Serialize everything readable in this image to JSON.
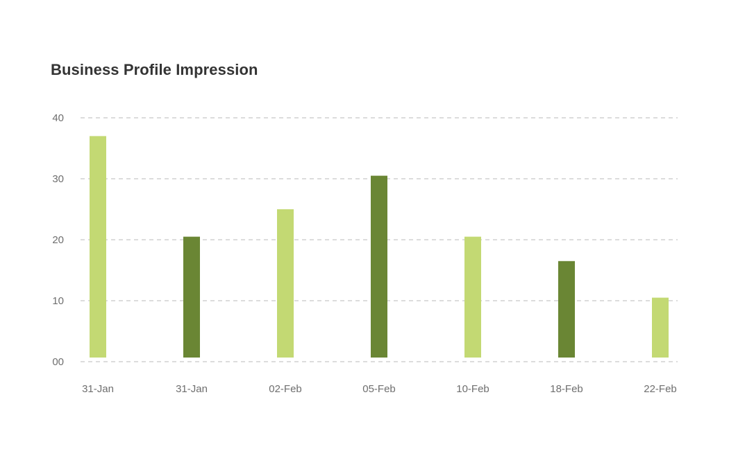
{
  "chart_data": {
    "type": "bar",
    "title": "Business Profile Impression",
    "xlabel": "",
    "ylabel": "",
    "categories": [
      "31-Jan",
      "31-Jan",
      "02-Feb",
      "05-Feb",
      "10-Feb",
      "18-Feb",
      "22-Feb"
    ],
    "values": [
      37,
      20.5,
      25,
      30.5,
      20.5,
      16.5,
      10.5
    ],
    "ylim": [
      0,
      40
    ],
    "y_ticks": [
      {
        "value": 0,
        "label": "00"
      },
      {
        "value": 10,
        "label": "10"
      },
      {
        "value": 20,
        "label": "20"
      },
      {
        "value": 30,
        "label": "30"
      },
      {
        "value": 40,
        "label": "40"
      }
    ],
    "grid": true,
    "grid_style": "dashed",
    "bar_colors": [
      "#c3d973",
      "#6a8634",
      "#c3d973",
      "#6a8634",
      "#c3d973",
      "#6a8634",
      "#c3d973"
    ]
  }
}
